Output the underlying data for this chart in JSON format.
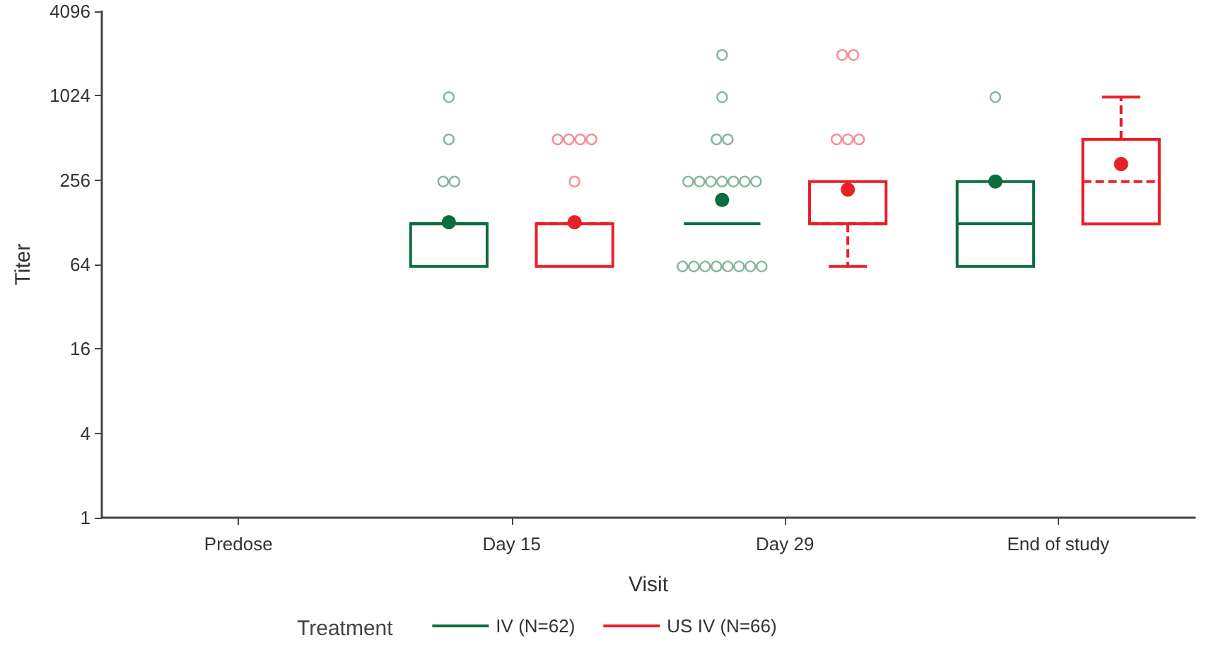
{
  "chart_data": {
    "type": "box",
    "xlabel": "Visit",
    "ylabel": "Titer",
    "legend_title": "Treatment",
    "categories": [
      "Predose",
      "Day 15",
      "Day 29",
      "End of study"
    ],
    "log": "y",
    "ylim": [
      1,
      4096
    ],
    "yticks": [
      1,
      4,
      16,
      64,
      256,
      1024,
      4096
    ],
    "grid": false,
    "legend": "bottom",
    "series": [
      {
        "name": "IV (N=62)",
        "color": "#0b6e3f",
        "line_style": "solid",
        "boxes": [
          null,
          {
            "low": 62,
            "q1": 62,
            "median": 125,
            "q3": 125,
            "high": 125,
            "mean": 128,
            "outliers": [
              250,
              250,
              500,
              1000
            ]
          },
          {
            "low": 125,
            "q1": 125,
            "median": 125,
            "q3": 125,
            "high": 125,
            "mean": 185,
            "outliers": [
              62,
              62,
              62,
              62,
              62,
              62,
              62,
              62,
              250,
              250,
              250,
              250,
              250,
              250,
              250,
              500,
              500,
              1000,
              2000
            ]
          },
          {
            "low": 62,
            "q1": 62,
            "median": 125,
            "q3": 250,
            "high": 250,
            "mean": 250,
            "outliers": [
              1000
            ]
          }
        ]
      },
      {
        "name": "US IV (N=66)",
        "color": "#e8202a",
        "line_style": "dashed",
        "boxes": [
          null,
          {
            "low": 62,
            "q1": 62,
            "median": 125,
            "q3": 125,
            "high": 125,
            "mean": 128,
            "outliers": [
              250,
              500,
              500,
              500,
              500
            ]
          },
          {
            "low": 62,
            "q1": 125,
            "median": 125,
            "q3": 250,
            "high": 250,
            "mean": 219,
            "outliers": [
              500,
              500,
              500,
              2000,
              2000
            ]
          },
          {
            "low": 125,
            "q1": 125,
            "median": 250,
            "q3": 500,
            "high": 1000,
            "mean": 333
          }
        ]
      }
    ]
  }
}
